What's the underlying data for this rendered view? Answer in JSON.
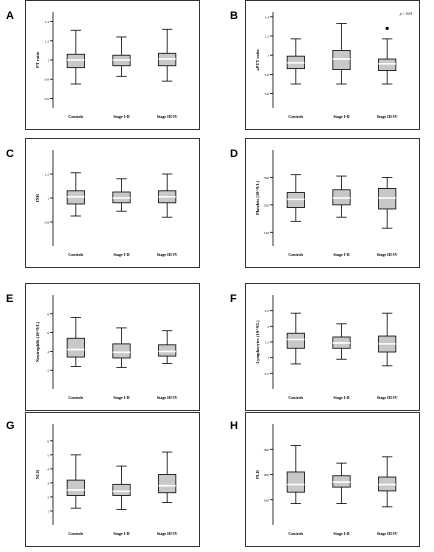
{
  "chart_data": [
    {
      "type": "box",
      "panel_label": "A",
      "ylabel": "PT ratio",
      "ylim": [
        0.5,
        1.5
      ],
      "yticks": [
        0.6,
        0.8,
        1.0,
        1.2,
        1.4
      ],
      "categories": [
        "Controls",
        "Stage I-II",
        "Stage III-IV"
      ],
      "boxes": [
        {
          "whisker_low": 0.75,
          "q1": 0.92,
          "median": 1.0,
          "q3": 1.06,
          "whisker_high": 1.31
        },
        {
          "whisker_low": 0.83,
          "q1": 0.94,
          "median": 1.0,
          "q3": 1.05,
          "whisker_high": 1.24
        },
        {
          "whisker_low": 0.78,
          "q1": 0.94,
          "median": 1.01,
          "q3": 1.07,
          "whisker_high": 1.32
        }
      ],
      "outliers": [],
      "annotation": ""
    },
    {
      "type": "box",
      "panel_label": "B",
      "ylabel": "aPTT ratio",
      "ylim": [
        0.45,
        1.45
      ],
      "yticks": [
        0.6,
        0.8,
        1.0,
        1.2,
        1.4
      ],
      "categories": [
        "Controls",
        "Stage I-II",
        "Stage III-IV"
      ],
      "boxes": [
        {
          "whisker_low": 0.7,
          "q1": 0.86,
          "median": 0.92,
          "q3": 0.99,
          "whisker_high": 1.17
        },
        {
          "whisker_low": 0.7,
          "q1": 0.85,
          "median": 0.96,
          "q3": 1.05,
          "whisker_high": 1.33
        },
        {
          "whisker_low": 0.7,
          "q1": 0.84,
          "median": 0.91,
          "q3": 0.96,
          "whisker_high": 1.17
        }
      ],
      "outliers": [
        {
          "category": "Stage III-IV",
          "value": 1.28
        }
      ],
      "annotation": "p < 0.04"
    },
    {
      "type": "box",
      "panel_label": "C",
      "ylabel": "INR",
      "ylim": [
        0.6,
        1.4
      ],
      "yticks": [
        0.8,
        1.0,
        1.2
      ],
      "categories": [
        "Controls",
        "Stage I-II",
        "Stage III-IV"
      ],
      "boxes": [
        {
          "whisker_low": 0.85,
          "q1": 0.95,
          "median": 1.01,
          "q3": 1.06,
          "whisker_high": 1.21
        },
        {
          "whisker_low": 0.89,
          "q1": 0.96,
          "median": 1.0,
          "q3": 1.05,
          "whisker_high": 1.16
        },
        {
          "whisker_low": 0.84,
          "q1": 0.96,
          "median": 1.01,
          "q3": 1.06,
          "whisker_high": 1.2
        }
      ],
      "outliers": [],
      "annotation": ""
    },
    {
      "type": "box",
      "panel_label": "D",
      "ylabel": "Platelets (10^9/L)",
      "ylim": [
        100,
        450
      ],
      "yticks": [
        150,
        250,
        350
      ],
      "categories": [
        "Controls",
        "Stage I-II",
        "Stage III-IV"
      ],
      "boxes": [
        {
          "whisker_low": 190,
          "q1": 240,
          "median": 270,
          "q3": 295,
          "whisker_high": 360
        },
        {
          "whisker_low": 205,
          "q1": 250,
          "median": 275,
          "q3": 305,
          "whisker_high": 355
        },
        {
          "whisker_low": 165,
          "q1": 235,
          "median": 275,
          "q3": 310,
          "whisker_high": 350
        }
      ],
      "outliers": [],
      "annotation": ""
    },
    {
      "type": "box",
      "panel_label": "E",
      "ylabel": "Neutrophils (10^9/L)",
      "ylim": [
        0,
        10
      ],
      "yticks": [
        2.0,
        4.0,
        6.0,
        8.0
      ],
      "categories": [
        "Controls",
        "Stage I-II",
        "Stage III-IV"
      ],
      "boxes": [
        {
          "whisker_low": 2.4,
          "q1": 3.4,
          "median": 4.2,
          "q3": 5.4,
          "whisker_high": 7.6
        },
        {
          "whisker_low": 2.3,
          "q1": 3.3,
          "median": 3.9,
          "q3": 4.8,
          "whisker_high": 6.5
        },
        {
          "whisker_low": 2.7,
          "q1": 3.5,
          "median": 4.0,
          "q3": 4.7,
          "whisker_high": 6.2
        }
      ],
      "outliers": [],
      "annotation": ""
    },
    {
      "type": "box",
      "panel_label": "F",
      "ylabel": "Lymphocytes (10^9/L)",
      "ylim": [
        0.0,
        3.0
      ],
      "yticks": [
        0.5,
        1.0,
        1.5,
        2.0,
        2.5
      ],
      "categories": [
        "Controls",
        "Stage I-II",
        "Stage III-IV"
      ],
      "boxes": [
        {
          "whisker_low": 0.8,
          "q1": 1.3,
          "median": 1.58,
          "q3": 1.78,
          "whisker_high": 2.42
        },
        {
          "whisker_low": 0.95,
          "q1": 1.3,
          "median": 1.47,
          "q3": 1.66,
          "whisker_high": 2.08
        },
        {
          "whisker_low": 0.74,
          "q1": 1.18,
          "median": 1.44,
          "q3": 1.69,
          "whisker_high": 2.42
        }
      ],
      "outliers": [],
      "annotation": ""
    },
    {
      "type": "box",
      "panel_label": "G",
      "ylabel": "NLR",
      "ylim": [
        0,
        7.2
      ],
      "yticks": [
        1.0,
        2.0,
        3.0,
        4.0,
        5.0,
        6.0
      ],
      "categories": [
        "Controls",
        "Stage I-II",
        "Stage III-IV"
      ],
      "boxes": [
        {
          "whisker_low": 1.2,
          "q1": 2.1,
          "median": 2.5,
          "q3": 3.2,
          "whisker_high": 5.0
        },
        {
          "whisker_low": 1.1,
          "q1": 2.1,
          "median": 2.4,
          "q3": 2.9,
          "whisker_high": 4.2
        },
        {
          "whisker_low": 1.6,
          "q1": 2.3,
          "median": 2.8,
          "q3": 3.6,
          "whisker_high": 5.2
        }
      ],
      "outliers": [],
      "annotation": ""
    },
    {
      "type": "box",
      "panel_label": "H",
      "ylabel": "PLR",
      "ylim": [
        0,
        400
      ],
      "yticks": [
        100,
        200,
        300
      ],
      "categories": [
        "Controls",
        "Stage I-II",
        "Stage III-IV"
      ],
      "boxes": [
        {
          "whisker_low": 85,
          "q1": 130,
          "median": 160,
          "q3": 210,
          "whisker_high": 315
        },
        {
          "whisker_low": 85,
          "q1": 150,
          "median": 170,
          "q3": 195,
          "whisker_high": 245
        },
        {
          "whisker_low": 72,
          "q1": 135,
          "median": 160,
          "q3": 190,
          "whisker_high": 270
        }
      ],
      "outliers": [],
      "annotation": ""
    }
  ]
}
